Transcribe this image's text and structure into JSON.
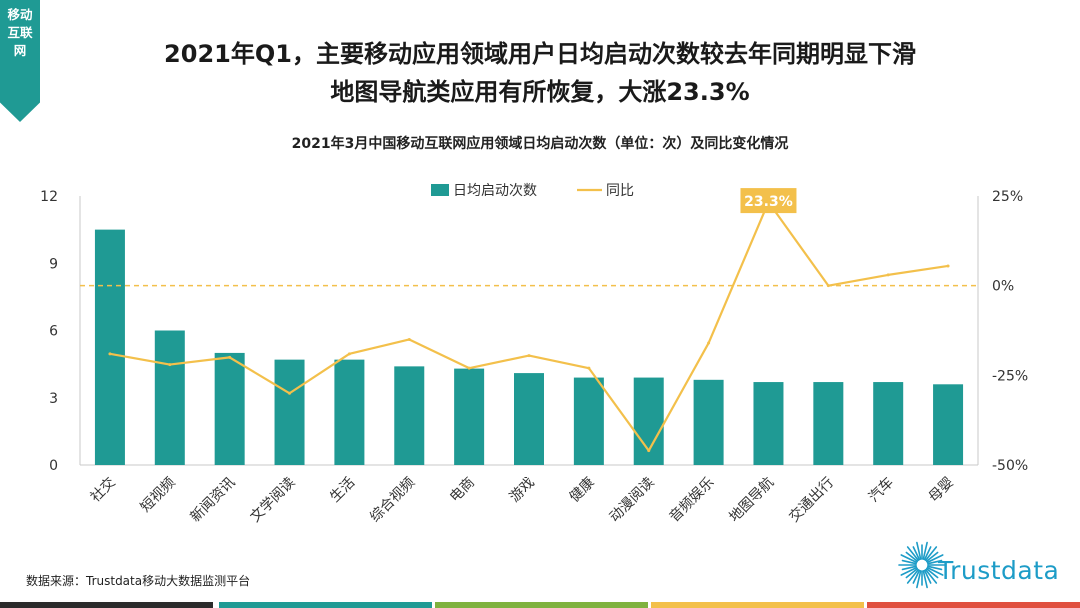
{
  "corner_tag": "移动互联网",
  "header": {
    "title_line1": "2021年Q1，主要移动应用领域用户日均启动次数较去年同期明显下滑",
    "title_line2": "地图导航类应用有所恢复，大涨23.3%",
    "subtitle": "2021年3月中国移动互联网应用领域日均启动次数（单位：次）及同比变化情况"
  },
  "chart_data": {
    "type": "bar",
    "categories": [
      "社交",
      "短视频",
      "新闻资讯",
      "文学阅读",
      "生活",
      "综合视频",
      "电商",
      "游戏",
      "健康",
      "动漫阅读",
      "音频娱乐",
      "地图导航",
      "交通出行",
      "汽车",
      "母婴"
    ],
    "series": [
      {
        "name": "日均启动次数",
        "type": "bar",
        "axis": "left",
        "color": "#1f9a94",
        "values": [
          10.5,
          6.0,
          5.0,
          4.7,
          4.7,
          4.4,
          4.3,
          4.1,
          3.9,
          3.9,
          3.8,
          3.7,
          3.7,
          3.7,
          3.6
        ]
      },
      {
        "name": "同比",
        "type": "line",
        "axis": "right",
        "color": "#f3c04b",
        "unit": "%",
        "values": [
          -19,
          -22,
          -20,
          -30,
          -19,
          -15,
          -23,
          -19.5,
          -23,
          -46,
          -16,
          23.3,
          0,
          3,
          5.5
        ]
      }
    ],
    "y_left": {
      "range": [
        0,
        12
      ],
      "ticks": [
        "0",
        "3",
        "6",
        "9",
        "12"
      ]
    },
    "y_right": {
      "range": [
        -50,
        25
      ],
      "ticks": [
        "-50%",
        "-25%",
        "0%",
        "25%"
      ]
    },
    "reference_line": {
      "axis": "right",
      "value": 0,
      "style": "dashed",
      "color": "#f3c04b"
    },
    "annotation": {
      "category": "地图导航",
      "label": "23.3%",
      "color": "#f3c04b"
    },
    "legend_position": "top-center",
    "grid": false
  },
  "source": "数据来源：Trustdata移动大数据监测平台",
  "logo": {
    "text": "Trustdata",
    "color": "#1d9cc7"
  },
  "footer_colors": [
    "#2b2b2b",
    "#1f9a94",
    "#7fb23f",
    "#f3c04b",
    "#e0503f"
  ]
}
